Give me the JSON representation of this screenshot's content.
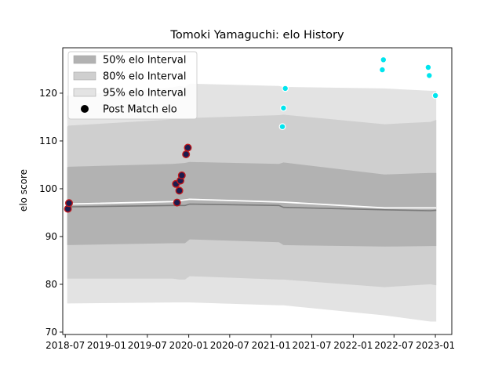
{
  "chart_data": {
    "type": "scatter",
    "title": "Tomoki Yamaguchi: elo History",
    "xlabel": "",
    "ylabel": "elo score",
    "x_range": [
      "2018-06-20",
      "2023-03-15"
    ],
    "y_range": [
      69.5,
      129.5
    ],
    "x_ticks": [
      "2018-07",
      "2019-01",
      "2019-07",
      "2020-01",
      "2020-07",
      "2021-01",
      "2021-07",
      "2022-01",
      "2022-07",
      "2023-01"
    ],
    "y_ticks": [
      70,
      80,
      90,
      100,
      110,
      120
    ],
    "legend": {
      "placement": "top-left",
      "entries": [
        "50% elo Interval",
        "80% elo Interval",
        "95% elo Interval",
        "Post Match elo"
      ]
    },
    "bands": {
      "x": [
        "2018-07-10",
        "2018-07-15",
        "2019-10-20",
        "2019-11-20",
        "2019-12-15",
        "2020-01-05",
        "2021-02-05",
        "2021-02-25",
        "2022-05-20",
        "2022-12-10",
        "2023-01-05"
      ],
      "p95_upper": [
        119.5,
        119.5,
        121.2,
        121.5,
        121.3,
        122.0,
        121.5,
        121.3,
        121.0,
        120.5,
        120.5
      ],
      "p95_lower": [
        76.0,
        76.0,
        76.2,
        76.2,
        76.2,
        76.2,
        75.6,
        75.6,
        73.5,
        72.2,
        72.2
      ],
      "p80_upper": [
        113.0,
        113.2,
        114.5,
        114.5,
        114.5,
        114.8,
        115.4,
        115.5,
        113.5,
        114.0,
        114.4
      ],
      "p80_lower": [
        81.2,
        81.2,
        81.2,
        81.0,
        81.0,
        81.7,
        81.0,
        81.0,
        79.4,
        80.0,
        79.8
      ],
      "p50_upper": [
        104.5,
        104.6,
        105.2,
        105.3,
        105.4,
        105.6,
        105.2,
        105.5,
        103.0,
        103.3,
        103.3
      ],
      "p50_lower": [
        88.2,
        88.2,
        88.6,
        88.6,
        88.6,
        89.4,
        88.8,
        88.2,
        87.9,
        88.0,
        88.0
      ],
      "median": [
        96.2,
        96.2,
        96.5,
        96.5,
        96.5,
        96.8,
        96.5,
        96.1,
        95.6,
        95.4,
        95.5
      ]
    },
    "mean_line": {
      "x": [
        "2018-07-10",
        "2019-10-20",
        "2020-01-05",
        "2021-02-25",
        "2022-05-20",
        "2023-01-05"
      ],
      "y": [
        96.8,
        97.3,
        97.8,
        97.2,
        96.0,
        96.0
      ]
    },
    "series": [
      {
        "style": "dark",
        "points": [
          {
            "x": "2018-07-13",
            "y": 95.8
          },
          {
            "x": "2018-07-18",
            "y": 97.0
          },
          {
            "x": "2019-11-05",
            "y": 101.0
          },
          {
            "x": "2019-11-10",
            "y": 97.1
          },
          {
            "x": "2019-11-20",
            "y": 99.6
          },
          {
            "x": "2019-11-25",
            "y": 101.7
          },
          {
            "x": "2019-12-01",
            "y": 102.8
          },
          {
            "x": "2019-12-20",
            "y": 107.2
          },
          {
            "x": "2019-12-28",
            "y": 108.6
          }
        ]
      },
      {
        "style": "cyan",
        "points": [
          {
            "x": "2021-02-20",
            "y": 113.0
          },
          {
            "x": "2021-02-25",
            "y": 116.9
          },
          {
            "x": "2021-03-05",
            "y": 121.0
          },
          {
            "x": "2022-05-10",
            "y": 124.9
          },
          {
            "x": "2022-05-15",
            "y": 127.0
          },
          {
            "x": "2022-11-30",
            "y": 125.4
          },
          {
            "x": "2022-12-05",
            "y": 123.7
          },
          {
            "x": "2023-01-01",
            "y": 119.5
          }
        ]
      }
    ],
    "colors": {
      "band95": "#e3e3e3",
      "band80": "#cfcfcf",
      "band50": "#b2b2b2",
      "median_line": "#7a7a7a",
      "mean_line": "#ffffff",
      "dark_fill": "#1c1c4e",
      "dark_edge": "#c0181c",
      "cyan_fill": "#00e5ee",
      "cyan_edge": "#ffffff"
    }
  }
}
